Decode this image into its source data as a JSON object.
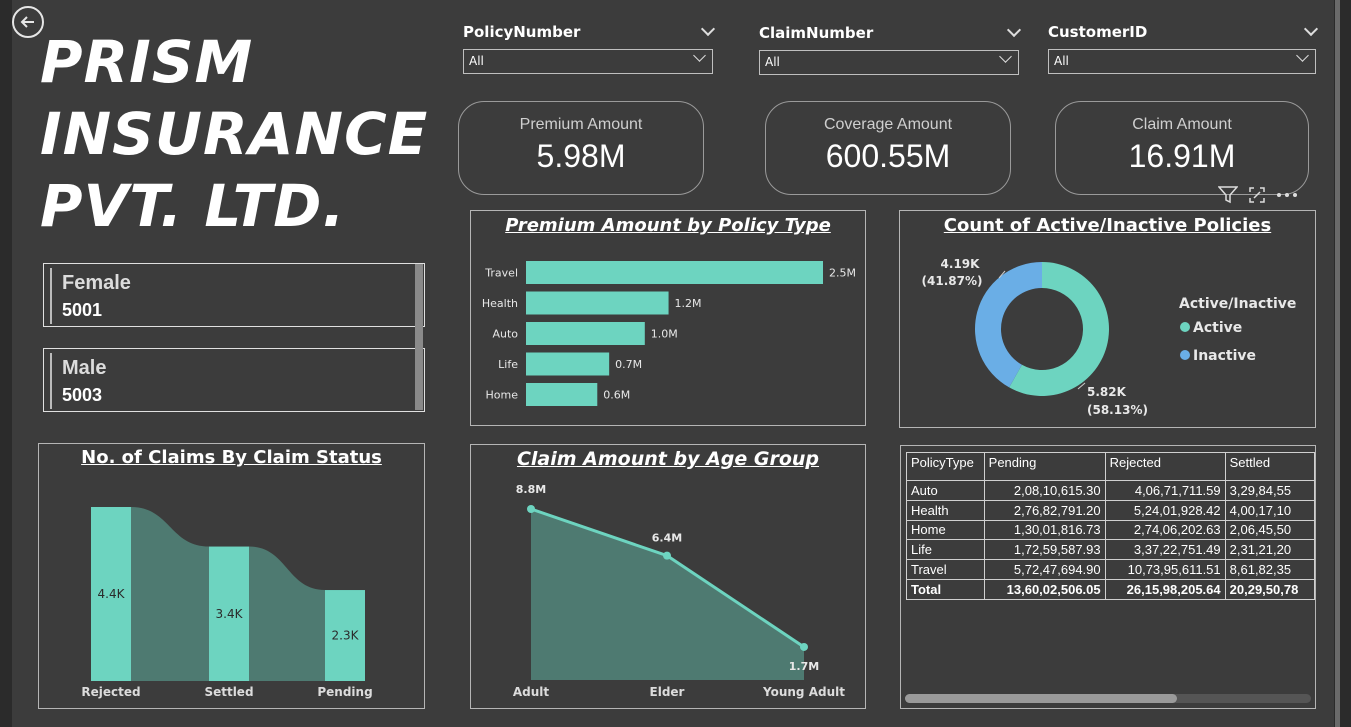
{
  "title_lines": [
    "PRISM",
    "INSURANCE",
    "PVT. LTD."
  ],
  "slicers": [
    {
      "label": "PolicyNumber",
      "value": "All"
    },
    {
      "label": "ClaimNumber",
      "value": "All"
    },
    {
      "label": "CustomerID",
      "value": "All"
    }
  ],
  "kpis": [
    {
      "label": "Premium Amount",
      "value": "5.98M"
    },
    {
      "label": "Coverage Amount",
      "value": "600.55M"
    },
    {
      "label": "Claim Amount",
      "value": "16.91M"
    }
  ],
  "gender": [
    {
      "label": "Female",
      "value": "5001"
    },
    {
      "label": "Male",
      "value": "5003"
    }
  ],
  "colors": {
    "accent": "#6dd4c0",
    "inactive": "#6aaee6",
    "area": "#4e7a71"
  },
  "premium_chart": {
    "title": "Premium Amount by Policy Type",
    "chart_data": {
      "type": "bar",
      "categories": [
        "Travel",
        "Health",
        "Auto",
        "Life",
        "Home"
      ],
      "values": [
        2.5,
        1.2,
        1.0,
        0.7,
        0.6
      ],
      "labels": [
        "2.5M",
        "1.2M",
        "1.0M",
        "0.7M",
        "0.6M"
      ]
    }
  },
  "donut_chart": {
    "title": "Count of Active/Inactive Policies",
    "legend_title": "Active/Inactive",
    "chart_data": {
      "type": "pie",
      "categories": [
        "Active",
        "Inactive"
      ],
      "values": [
        5.82,
        4.19
      ],
      "labels": [
        "5.82K",
        "4.19K"
      ],
      "percents": [
        "(58.13%)",
        "(41.87%)"
      ]
    }
  },
  "claims_chart": {
    "title": "No. of Claims By Claim Status",
    "chart_data": {
      "type": "bar",
      "categories": [
        "Rejected",
        "Settled",
        "Pending"
      ],
      "values": [
        4.4,
        3.4,
        2.3
      ],
      "labels": [
        "4.4K",
        "3.4K",
        "2.3K"
      ]
    }
  },
  "age_chart": {
    "title": "Claim Amount by Age Group",
    "chart_data": {
      "type": "area",
      "categories": [
        "Adult",
        "Elder",
        "Young Adult"
      ],
      "values": [
        8.8,
        6.4,
        1.7
      ],
      "labels": [
        "8.8M",
        "6.4M",
        "1.7M"
      ]
    }
  },
  "table": {
    "headers": [
      "PolicyType",
      "Pending",
      "Rejected",
      "Settled"
    ],
    "rows": [
      [
        "Auto",
        "2,08,10,615.30",
        "4,06,71,711.59",
        "3,29,84,55"
      ],
      [
        "Health",
        "2,76,82,791.20",
        "5,24,01,928.42",
        "4,00,17,10"
      ],
      [
        "Home",
        "1,30,01,816.73",
        "2,74,06,202.63",
        "2,06,45,50"
      ],
      [
        "Life",
        "1,72,59,587.93",
        "3,37,22,751.49",
        "2,31,21,20"
      ],
      [
        "Travel",
        "5,72,47,694.90",
        "10,73,95,611.51",
        "8,61,82,35"
      ]
    ],
    "total": [
      "Total",
      "13,60,02,506.05",
      "26,15,98,205.64",
      "20,29,50,78"
    ]
  },
  "icons": [
    "back-arrow-icon",
    "filter-icon",
    "focus-mode-icon",
    "more-options-icon"
  ]
}
